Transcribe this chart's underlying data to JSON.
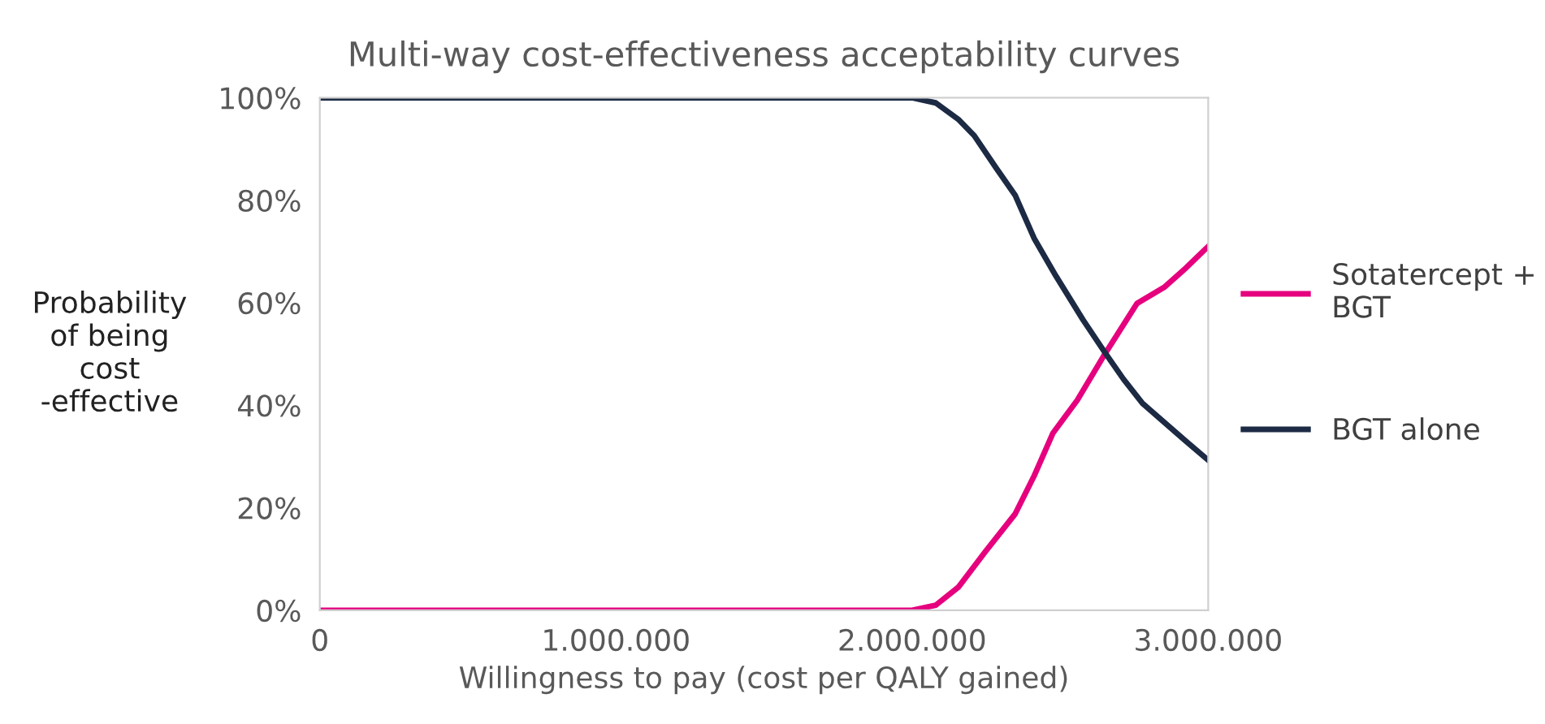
{
  "chart_data": {
    "type": "line",
    "title": "Multi-way cost-effectiveness acceptability curves",
    "xlabel": "Willingness to pay (cost per QALY gained)",
    "ylabel": "Probability\nof being\ncost\n-effective",
    "series": [
      {
        "name": "Sotatercept +\nBGT",
        "color": "#e6007e",
        "x": [
          0,
          2000000,
          2080000,
          2156000,
          2247000,
          2348000,
          2412000,
          2476000,
          2558000,
          2650000,
          2760000,
          2851000,
          2925000,
          3000000
        ],
        "values": [
          0,
          0,
          1,
          4.5,
          11.4,
          18.8,
          26.2,
          34.6,
          41,
          49.9,
          59.9,
          63,
          66.8,
          71
        ]
      },
      {
        "name": "BGT alone",
        "color": "#1c2a44",
        "x": [
          0,
          2000000,
          2080000,
          2156000,
          2210000,
          2284000,
          2348000,
          2412000,
          2486000,
          2577000,
          2650000,
          2714000,
          2778000,
          2851000,
          2925000,
          3000000
        ],
        "values": [
          100,
          100,
          99,
          95.8,
          92.6,
          86.3,
          81,
          72.6,
          65.2,
          56.7,
          50.4,
          45.1,
          40.4,
          36.7,
          33,
          29.3
        ]
      }
    ],
    "xlim": [
      0,
      3000000
    ],
    "xticks": [
      0,
      {
        "value": 1000000,
        "label": "1.000.000"
      },
      {
        "value": 2000000,
        "label": "2.000.000"
      },
      {
        "value": 3000000,
        "label": "3.000.000"
      }
    ],
    "ylim": [
      0,
      100
    ],
    "yticks": [
      {
        "value": 0,
        "label": "0%"
      },
      {
        "value": 20,
        "label": "20%"
      },
      {
        "value": 40,
        "label": "40%"
      },
      {
        "value": 60,
        "label": "60%"
      },
      {
        "value": 80,
        "label": "80%"
      },
      {
        "value": 100,
        "label": "100%"
      }
    ],
    "grid": false,
    "legend": "right",
    "marker": "none",
    "line_style": "solid"
  }
}
